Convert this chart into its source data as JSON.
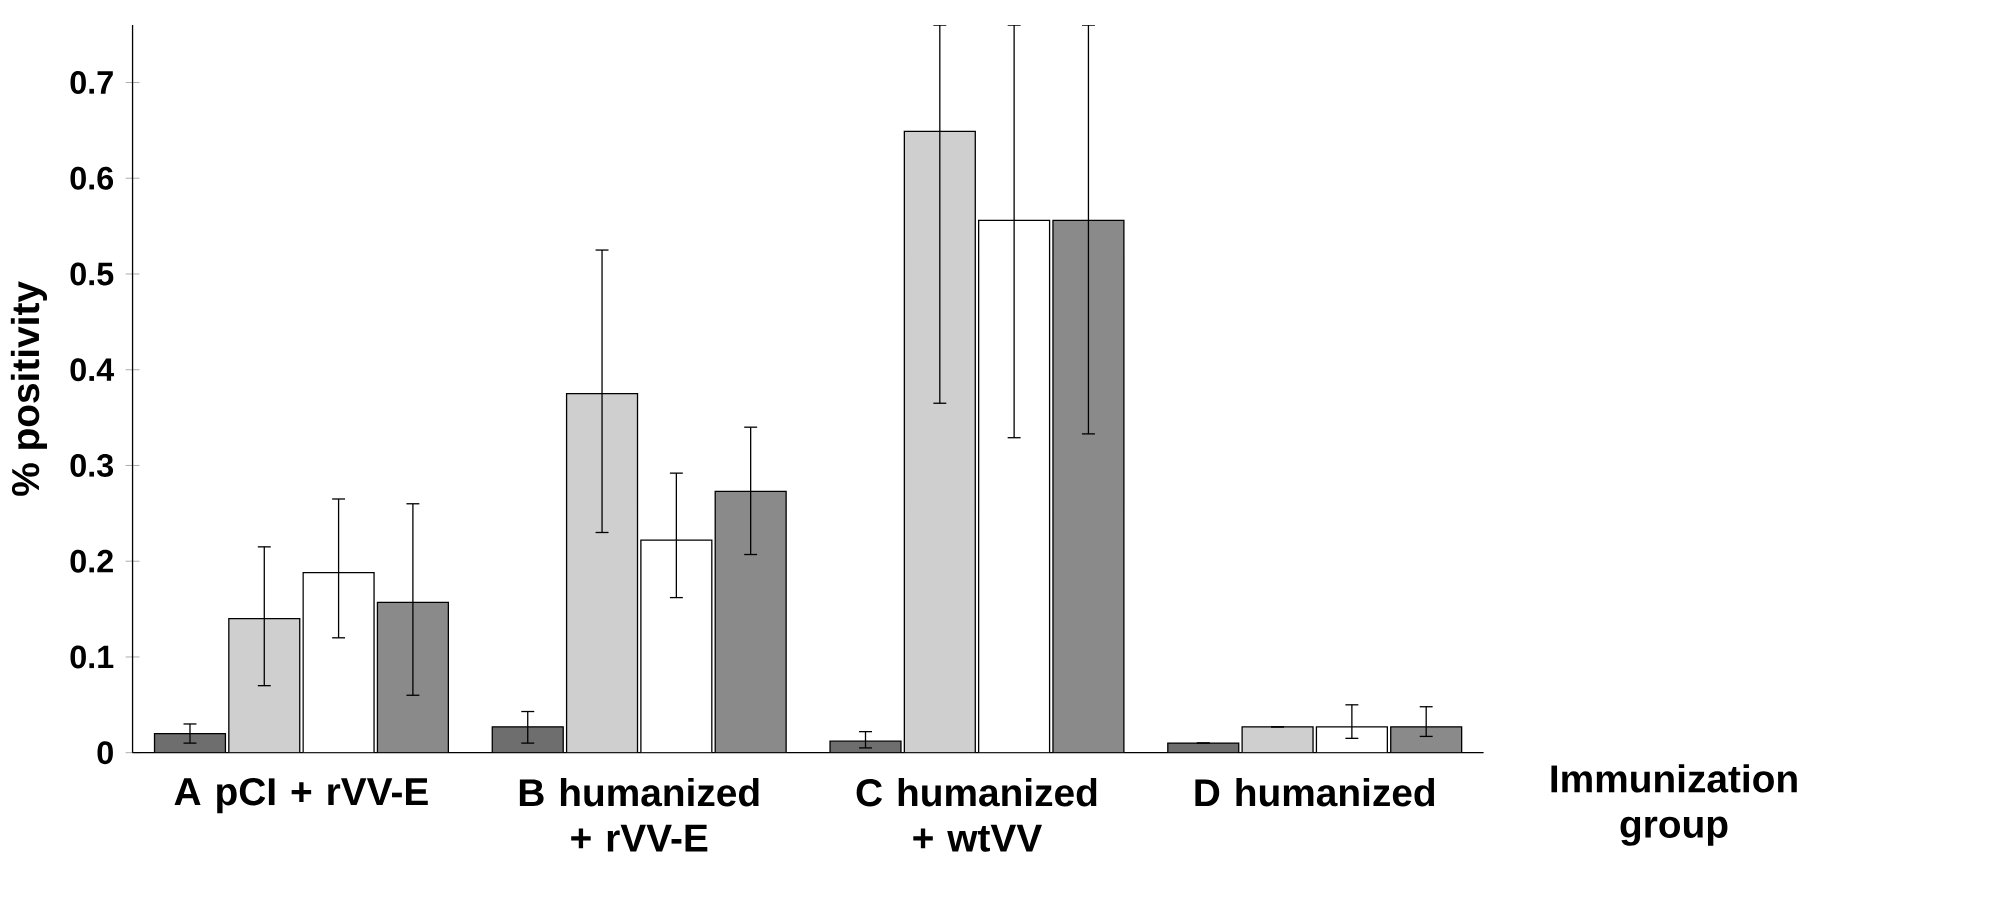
{
  "chart_data": {
    "type": "bar",
    "xlabel": "Immunization group",
    "ylabel": "% positivity",
    "categories": [
      "A pCI + rVV-E",
      "B humanized + rVV-E",
      "C humanized + wtVV",
      "D humanized"
    ],
    "series": [
      {
        "color": "#6e6e6e",
        "values": [
          0.02,
          0.027,
          0.012,
          0.01
        ],
        "errors": [
          [
            0.01,
            0.03
          ],
          [
            0.01,
            0.043
          ],
          [
            0.005,
            0.022
          ],
          null
        ]
      },
      {
        "color": "#cfcfcf",
        "values": [
          0.14,
          0.375,
          0.649,
          0.027
        ],
        "errors": [
          [
            0.07,
            0.215
          ],
          [
            0.23,
            0.525
          ],
          [
            0.365,
            0.76
          ],
          null
        ]
      },
      {
        "color": "#ffffff",
        "values": [
          0.188,
          0.222,
          0.556,
          0.027
        ],
        "errors": [
          [
            0.12,
            0.265
          ],
          [
            0.162,
            0.292
          ],
          [
            0.329,
            0.76
          ],
          [
            0.015,
            0.05
          ]
        ]
      },
      {
        "color": "#8a8a8a",
        "values": [
          0.157,
          0.273,
          0.556,
          0.027
        ],
        "errors": [
          [
            0.06,
            0.26
          ],
          [
            0.207,
            0.34
          ],
          [
            0.333,
            0.76
          ],
          [
            0.017,
            0.048
          ]
        ]
      }
    ],
    "ylim": [
      0,
      0.76
    ],
    "yticks": [
      0,
      0.1,
      0.2,
      0.3,
      0.4,
      0.5,
      0.6,
      0.7
    ],
    "grid": false
  }
}
